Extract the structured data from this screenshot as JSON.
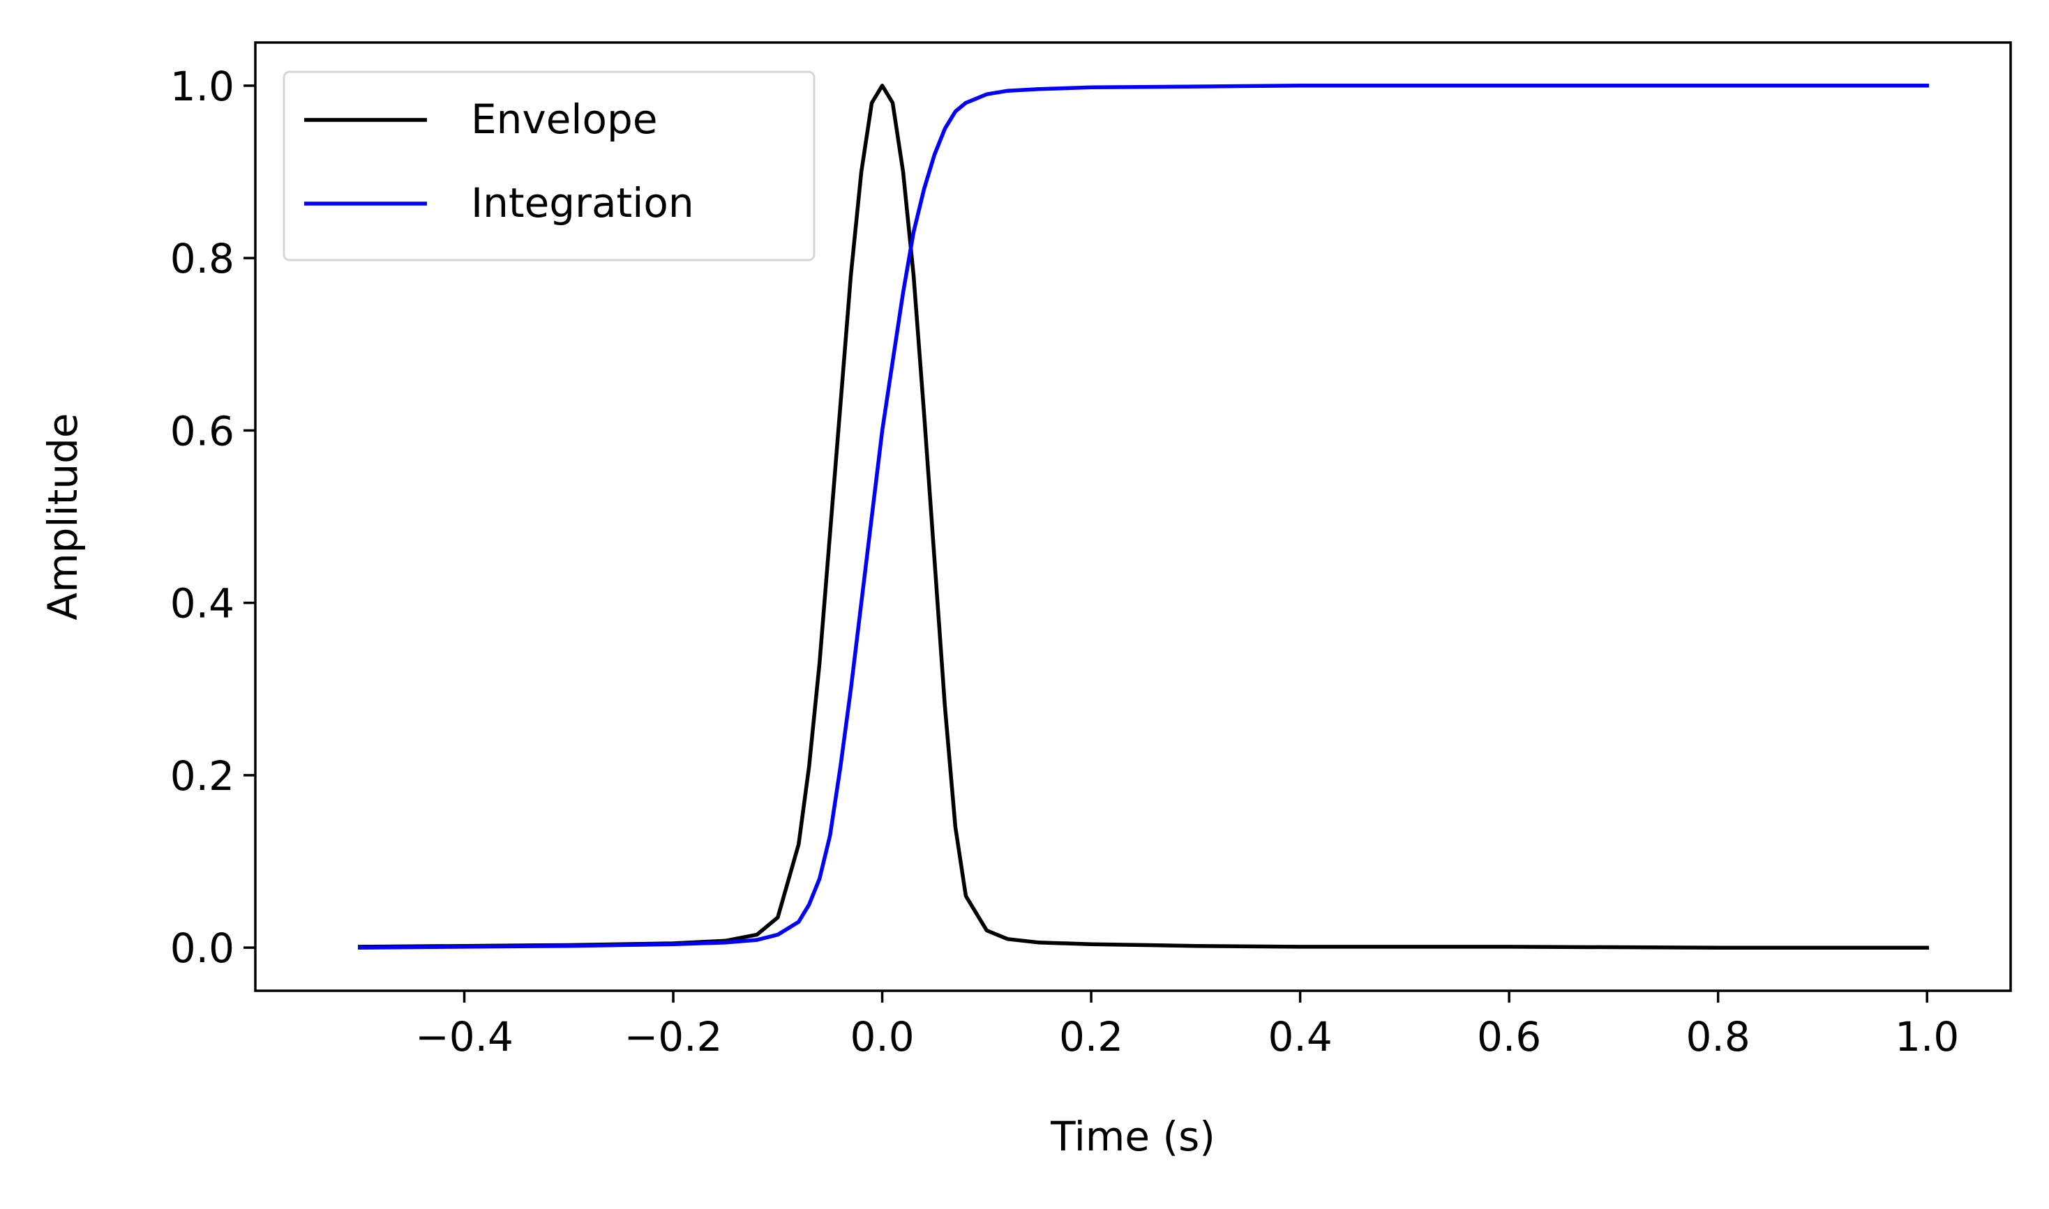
{
  "chart_data": {
    "type": "line",
    "title": "",
    "xlabel": "Time (s)",
    "ylabel": "Amplitude",
    "xlim": [
      -0.6,
      1.08
    ],
    "ylim": [
      -0.05,
      1.05
    ],
    "xticks": [
      -0.4,
      -0.2,
      0.0,
      0.2,
      0.4,
      0.6,
      0.8,
      1.0
    ],
    "xtick_labels": [
      "−0.4",
      "−0.2",
      "0.0",
      "0.2",
      "0.4",
      "0.6",
      "0.8",
      "1.0"
    ],
    "yticks": [
      0.0,
      0.2,
      0.4,
      0.6,
      0.8,
      1.0
    ],
    "ytick_labels": [
      "0.0",
      "0.2",
      "0.4",
      "0.6",
      "0.8",
      "1.0"
    ],
    "grid": false,
    "legend_position": "top-left",
    "series": [
      {
        "name": "Envelope",
        "color": "#000000",
        "x": [
          -0.5,
          -0.4,
          -0.3,
          -0.2,
          -0.15,
          -0.12,
          -0.1,
          -0.08,
          -0.07,
          -0.06,
          -0.05,
          -0.04,
          -0.03,
          -0.02,
          -0.01,
          0.0,
          0.01,
          0.02,
          0.03,
          0.04,
          0.05,
          0.06,
          0.07,
          0.08,
          0.1,
          0.12,
          0.15,
          0.2,
          0.3,
          0.4,
          0.6,
          0.8,
          1.0
        ],
        "y": [
          0.001,
          0.002,
          0.003,
          0.005,
          0.008,
          0.015,
          0.035,
          0.12,
          0.21,
          0.33,
          0.48,
          0.63,
          0.78,
          0.9,
          0.98,
          1.0,
          0.98,
          0.9,
          0.78,
          0.62,
          0.45,
          0.28,
          0.14,
          0.06,
          0.02,
          0.01,
          0.006,
          0.004,
          0.002,
          0.001,
          0.001,
          0.0,
          0.0
        ]
      },
      {
        "name": "Integration",
        "color": "#0000ff",
        "x": [
          -0.5,
          -0.4,
          -0.3,
          -0.2,
          -0.15,
          -0.12,
          -0.1,
          -0.08,
          -0.07,
          -0.06,
          -0.05,
          -0.04,
          -0.03,
          -0.02,
          -0.01,
          0.0,
          0.01,
          0.02,
          0.03,
          0.04,
          0.05,
          0.06,
          0.07,
          0.08,
          0.09,
          0.1,
          0.12,
          0.15,
          0.2,
          0.3,
          0.4,
          0.6,
          0.8,
          1.0
        ],
        "y": [
          0.0,
          0.001,
          0.002,
          0.004,
          0.006,
          0.009,
          0.015,
          0.03,
          0.05,
          0.08,
          0.13,
          0.21,
          0.3,
          0.4,
          0.5,
          0.6,
          0.68,
          0.76,
          0.83,
          0.88,
          0.92,
          0.95,
          0.97,
          0.98,
          0.985,
          0.99,
          0.994,
          0.996,
          0.998,
          0.999,
          1.0,
          1.0,
          1.0,
          1.0
        ]
      }
    ]
  }
}
